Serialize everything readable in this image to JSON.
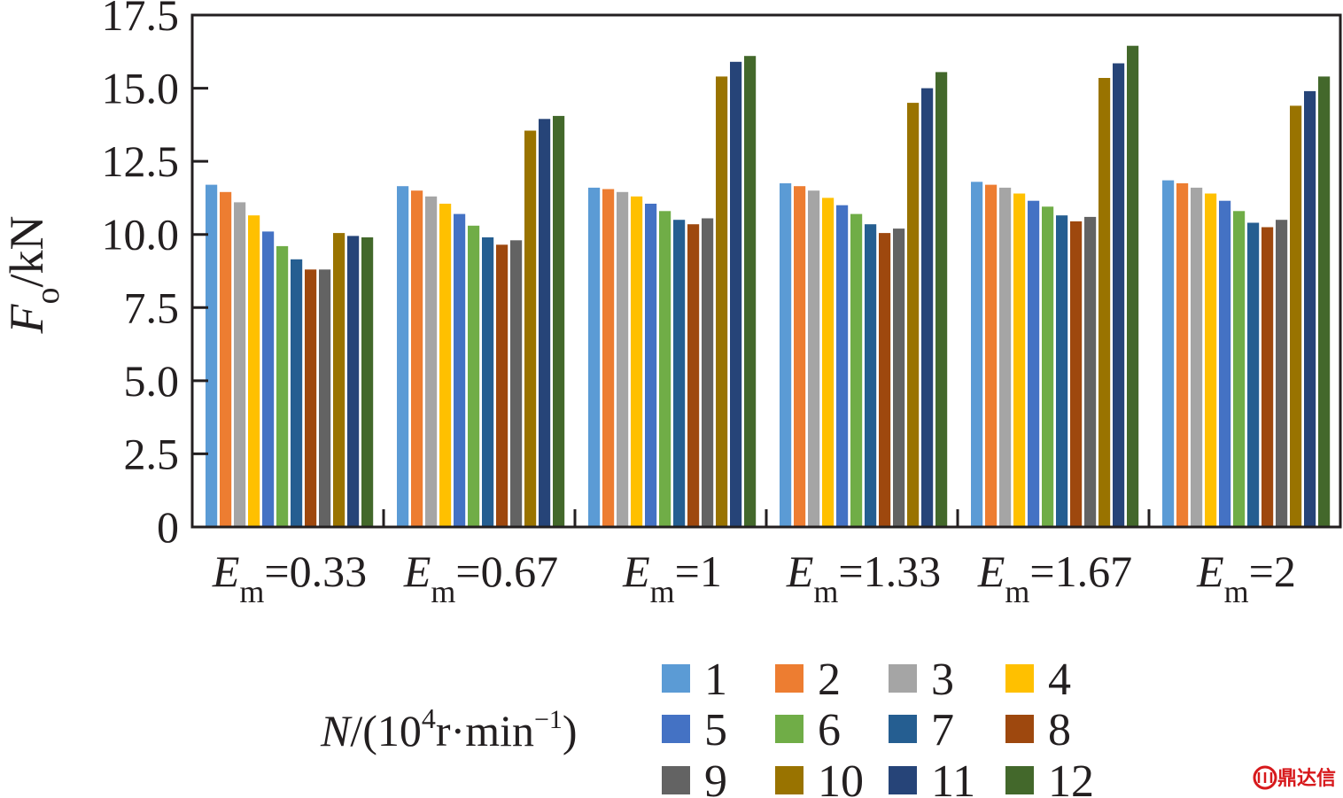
{
  "chart_data": {
    "type": "bar",
    "ylabel": {
      "main": "F",
      "sub": "o",
      "unit": "/kN"
    },
    "ylim": [
      0,
      17.5
    ],
    "yticks": [
      "0",
      "2.5",
      "5.0",
      "7.5",
      "10.0",
      "12.5",
      "15.0",
      "17.5"
    ],
    "ytick_values": [
      0,
      2.5,
      5.0,
      7.5,
      10.0,
      12.5,
      15.0,
      17.5
    ],
    "categories": [
      {
        "main": "E",
        "sub": "m",
        "rest": "=0.33"
      },
      {
        "main": "E",
        "sub": "m",
        "rest": "=0.67"
      },
      {
        "main": "E",
        "sub": "m",
        "rest": "=1"
      },
      {
        "main": "E",
        "sub": "m",
        "rest": "=1.33"
      },
      {
        "main": "E",
        "sub": "m",
        "rest": "=1.67"
      },
      {
        "main": "E",
        "sub": "m",
        "rest": "=2"
      }
    ],
    "legend_title": {
      "main": "N",
      "rest1": "/(10",
      "sup1": "4",
      "rest2": "r·min",
      "sup2": "−1",
      "rest3": ")"
    },
    "series": [
      {
        "name": "1",
        "color": "#5b9bd5",
        "values": [
          11.7,
          11.65,
          11.6,
          11.75,
          11.8,
          11.85
        ]
      },
      {
        "name": "2",
        "color": "#ed7d31",
        "values": [
          11.45,
          11.5,
          11.55,
          11.65,
          11.7,
          11.75
        ]
      },
      {
        "name": "3",
        "color": "#a5a5a5",
        "values": [
          11.1,
          11.3,
          11.45,
          11.5,
          11.6,
          11.6
        ]
      },
      {
        "name": "4",
        "color": "#ffc000",
        "values": [
          10.65,
          11.05,
          11.3,
          11.25,
          11.4,
          11.4
        ]
      },
      {
        "name": "5",
        "color": "#4472c4",
        "values": [
          10.1,
          10.7,
          11.05,
          11.0,
          11.15,
          11.15
        ]
      },
      {
        "name": "6",
        "color": "#70ad47",
        "values": [
          9.6,
          10.3,
          10.8,
          10.7,
          10.95,
          10.8
        ]
      },
      {
        "name": "7",
        "color": "#255e91",
        "values": [
          9.15,
          9.9,
          10.5,
          10.35,
          10.65,
          10.4
        ]
      },
      {
        "name": "8",
        "color": "#9e480e",
        "values": [
          8.8,
          9.65,
          10.35,
          10.05,
          10.45,
          10.25
        ]
      },
      {
        "name": "9",
        "color": "#636363",
        "values": [
          8.8,
          9.8,
          10.55,
          10.2,
          10.6,
          10.5
        ]
      },
      {
        "name": "10",
        "color": "#997300",
        "values": [
          10.05,
          13.55,
          15.4,
          14.5,
          15.35,
          14.4
        ]
      },
      {
        "name": "11",
        "color": "#264478",
        "values": [
          9.95,
          13.95,
          15.9,
          15.0,
          15.85,
          14.9
        ]
      },
      {
        "name": "12",
        "color": "#43682b",
        "values": [
          9.9,
          14.05,
          16.1,
          15.55,
          16.45,
          15.4
        ]
      }
    ]
  },
  "watermark": {
    "text": "鼎达信",
    "color": "#d7191c"
  }
}
